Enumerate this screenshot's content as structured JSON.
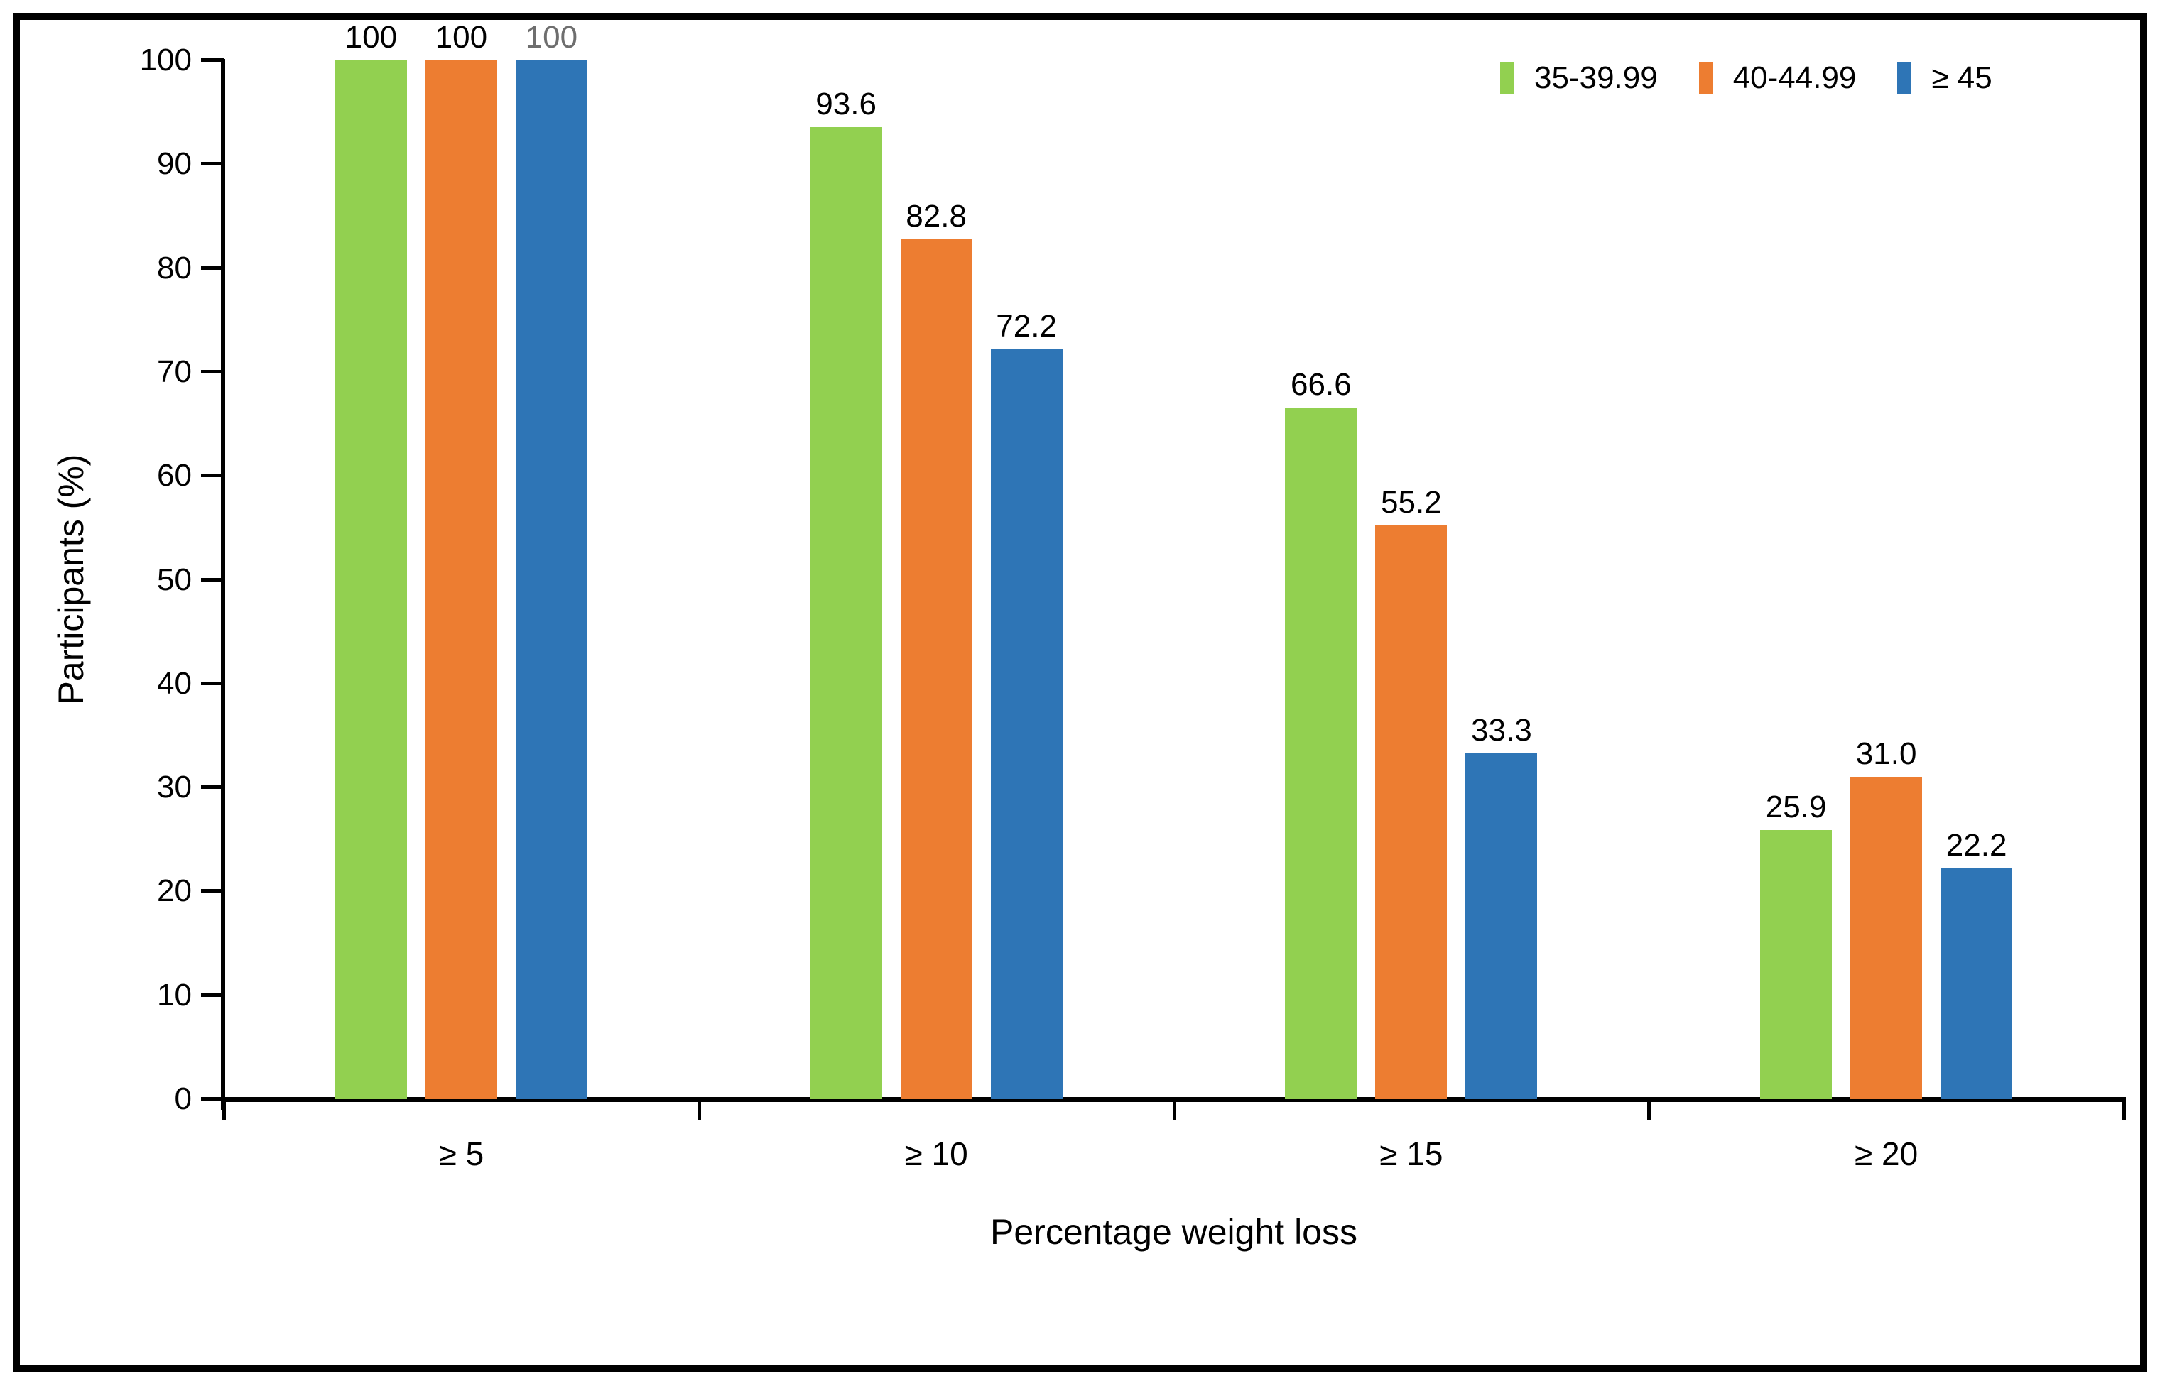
{
  "figure": {
    "background": "#FFFFFF",
    "border_color": "#000000",
    "axis_color": "#000000",
    "text_color": "#000000"
  },
  "chart_data": {
    "type": "bar",
    "title": "",
    "xlabel": "Percentage weight loss",
    "ylabel": "Participants (%)",
    "categories": [
      "≥ 5",
      "≥ 10",
      "≥ 15",
      "≥ 20"
    ],
    "series": [
      {
        "name": "35-39.99",
        "color": "#92D050",
        "values": [
          100,
          93.6,
          66.6,
          25.9
        ],
        "labels": [
          "100",
          "93.6",
          "66.6",
          "25.9"
        ]
      },
      {
        "name": "40-44.99",
        "color": "#ED7D31",
        "values": [
          100,
          82.8,
          55.2,
          31.0
        ],
        "labels": [
          "100",
          "82.8",
          "55.2",
          "31.0"
        ]
      },
      {
        "name": "≥ 45",
        "color": "#2E75B6",
        "values": [
          100,
          72.2,
          33.3,
          22.2
        ],
        "labels": [
          "100",
          "72.2",
          "33.3",
          "22.2"
        ]
      }
    ],
    "label_color_overrides": [
      {
        "series_index": 2,
        "category_index": 0,
        "color": "#6E6E6E"
      }
    ],
    "ylim": [
      0,
      100
    ],
    "y_ticks": [
      "0",
      "10",
      "20",
      "30",
      "40",
      "50",
      "60",
      "70",
      "80",
      "90",
      "100"
    ],
    "grid": false,
    "legend_position": "top-right"
  }
}
